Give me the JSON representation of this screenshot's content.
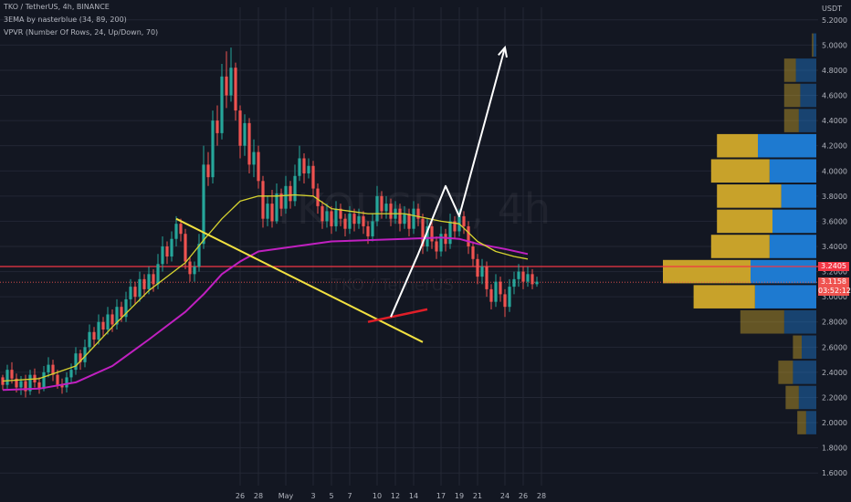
{
  "header": {
    "symbol": "TKO / TetherUS, 4h, BINANCE",
    "ema_indicator": "3EMA by nasterblue (34, 89, 200)",
    "vpvr_indicator": "VPVR (Number Of Rows, 24, Up/Down, 70)",
    "axis_unit": "USDT"
  },
  "price_tags": {
    "level": "3.2405",
    "last": "3.1158",
    "countdown": "03:52:12"
  },
  "watermark": {
    "symbol": "TKOUSDT, 4h",
    "name": "TKO / TetherUS"
  },
  "colors": {
    "background": "#131722",
    "up_candle": "#26a69a",
    "down_candle": "#ef5350",
    "ema_short": "#d6d330",
    "ema_mid": "#c020c0",
    "level_line": "#f23645",
    "trend_line": "#f2e140",
    "support_line": "#e01e28",
    "projection": "#ffffff",
    "vp_up": "#1e7ad0",
    "vp_down": "#c8a22a"
  },
  "chart_data": {
    "type": "candlestick",
    "y_axis": {
      "min": 1.5,
      "max": 5.3,
      "ticks": [
        1.6,
        1.8,
        2.0,
        2.2,
        2.4,
        2.6,
        2.8,
        3.0,
        3.2,
        3.4,
        3.6,
        3.8,
        4.0,
        4.2,
        4.4,
        4.6,
        4.8,
        5.0,
        5.2
      ],
      "tick_labels": [
        "1.6000",
        "1.8000",
        "2.0000",
        "2.2000",
        "2.4000",
        "2.6000",
        "2.8000",
        "3.0000",
        "3.2000",
        "3.4000",
        "3.6000",
        "3.8000",
        "4.0000",
        "4.2000",
        "4.4000",
        "4.6000",
        "4.8000",
        "5.0000",
        "5.2000"
      ]
    },
    "x_axis": {
      "ticks": [
        26,
        28,
        31,
        34,
        36,
        38,
        41,
        43,
        45,
        48,
        50,
        52,
        55,
        57,
        59
      ],
      "tick_labels": [
        "26",
        "28",
        "May",
        "3",
        "5",
        "7",
        "10",
        "12",
        "14",
        "17",
        "19",
        "21",
        "24",
        "26",
        "28"
      ]
    },
    "candles": [
      [
        2.36,
        2.3,
        2.38,
        2.26
      ],
      [
        2.3,
        2.42,
        2.46,
        2.27
      ],
      [
        2.42,
        2.35,
        2.48,
        2.31
      ],
      [
        2.35,
        2.28,
        2.39,
        2.24
      ],
      [
        2.28,
        2.33,
        2.37,
        2.22
      ],
      [
        2.33,
        2.25,
        2.38,
        2.2
      ],
      [
        2.25,
        2.38,
        2.42,
        2.22
      ],
      [
        2.38,
        2.32,
        2.43,
        2.28
      ],
      [
        2.32,
        2.27,
        2.36,
        2.23
      ],
      [
        2.27,
        2.4,
        2.45,
        2.25
      ],
      [
        2.4,
        2.46,
        2.52,
        2.36
      ],
      [
        2.46,
        2.38,
        2.5,
        2.33
      ],
      [
        2.38,
        2.3,
        2.42,
        2.27
      ],
      [
        2.3,
        2.28,
        2.35,
        2.23
      ],
      [
        2.28,
        2.36,
        2.4,
        2.24
      ],
      [
        2.36,
        2.42,
        2.47,
        2.32
      ],
      [
        2.42,
        2.55,
        2.6,
        2.38
      ],
      [
        2.55,
        2.48,
        2.58,
        2.42
      ],
      [
        2.48,
        2.6,
        2.66,
        2.44
      ],
      [
        2.6,
        2.72,
        2.78,
        2.56
      ],
      [
        2.72,
        2.66,
        2.76,
        2.6
      ],
      [
        2.66,
        2.8,
        2.86,
        2.62
      ],
      [
        2.8,
        2.74,
        2.84,
        2.68
      ],
      [
        2.74,
        2.86,
        2.92,
        2.7
      ],
      [
        2.86,
        2.78,
        2.9,
        2.72
      ],
      [
        2.78,
        2.92,
        2.98,
        2.74
      ],
      [
        2.92,
        2.84,
        2.96,
        2.8
      ],
      [
        2.84,
        2.98,
        3.04,
        2.8
      ],
      [
        2.98,
        3.08,
        3.14,
        2.92
      ],
      [
        3.08,
        3.0,
        3.12,
        2.94
      ],
      [
        3.0,
        3.14,
        3.2,
        2.96
      ],
      [
        3.14,
        3.06,
        3.18,
        3.0
      ],
      [
        3.06,
        3.18,
        3.24,
        3.02
      ],
      [
        3.18,
        3.1,
        3.22,
        3.04
      ],
      [
        3.1,
        3.26,
        3.34,
        3.06
      ],
      [
        3.26,
        3.4,
        3.48,
        3.2
      ],
      [
        3.4,
        3.32,
        3.44,
        3.26
      ],
      [
        3.32,
        3.46,
        3.52,
        3.28
      ],
      [
        3.46,
        3.58,
        3.64,
        3.4
      ],
      [
        3.58,
        3.5,
        3.62,
        3.44
      ],
      [
        3.5,
        3.28,
        3.54,
        3.22
      ],
      [
        3.28,
        3.18,
        3.32,
        3.12
      ],
      [
        3.18,
        3.24,
        3.28,
        3.12
      ],
      [
        3.24,
        3.42,
        3.5,
        3.2
      ],
      [
        3.42,
        4.05,
        4.2,
        3.38
      ],
      [
        4.05,
        3.95,
        4.15,
        3.88
      ],
      [
        3.95,
        4.4,
        4.48,
        3.9
      ],
      [
        4.4,
        4.3,
        4.52,
        4.2
      ],
      [
        4.3,
        4.75,
        4.85,
        4.25
      ],
      [
        4.75,
        4.6,
        4.95,
        4.5
      ],
      [
        4.6,
        4.82,
        4.98,
        4.55
      ],
      [
        4.82,
        4.48,
        4.86,
        4.4
      ],
      [
        4.48,
        4.2,
        4.52,
        4.1
      ],
      [
        4.2,
        4.38,
        4.45,
        4.12
      ],
      [
        4.38,
        4.05,
        4.42,
        3.98
      ],
      [
        4.05,
        4.15,
        4.25,
        3.95
      ],
      [
        4.15,
        3.92,
        4.2,
        3.86
      ],
      [
        3.92,
        3.62,
        3.96,
        3.55
      ],
      [
        3.62,
        3.74,
        3.8,
        3.56
      ],
      [
        3.74,
        3.6,
        3.85,
        3.55
      ],
      [
        3.6,
        3.82,
        3.9,
        3.58
      ],
      [
        3.82,
        3.7,
        3.86,
        3.64
      ],
      [
        3.7,
        3.88,
        3.96,
        3.66
      ],
      [
        3.88,
        3.76,
        3.92,
        3.7
      ],
      [
        3.76,
        3.96,
        4.05,
        3.72
      ],
      [
        3.96,
        4.1,
        4.2,
        3.92
      ],
      [
        4.1,
        3.98,
        4.14,
        3.9
      ],
      [
        3.98,
        4.04,
        4.1,
        3.94
      ],
      [
        4.04,
        3.86,
        4.08,
        3.8
      ],
      [
        3.86,
        3.72,
        3.9,
        3.66
      ],
      [
        3.72,
        3.6,
        3.76,
        3.54
      ],
      [
        3.6,
        3.68,
        3.74,
        3.55
      ],
      [
        3.68,
        3.56,
        3.72,
        3.5
      ],
      [
        3.56,
        3.7,
        3.76,
        3.52
      ],
      [
        3.7,
        3.62,
        3.74,
        3.56
      ],
      [
        3.62,
        3.54,
        3.66,
        3.48
      ],
      [
        3.54,
        3.66,
        3.72,
        3.5
      ],
      [
        3.66,
        3.58,
        3.7,
        3.52
      ],
      [
        3.58,
        3.64,
        3.7,
        3.54
      ],
      [
        3.64,
        3.56,
        3.68,
        3.5
      ],
      [
        3.56,
        3.48,
        3.6,
        3.42
      ],
      [
        3.48,
        3.6,
        3.66,
        3.44
      ],
      [
        3.6,
        3.8,
        3.88,
        3.56
      ],
      [
        3.8,
        3.68,
        3.84,
        3.62
      ],
      [
        3.68,
        3.74,
        3.8,
        3.62
      ],
      [
        3.74,
        3.62,
        3.78,
        3.56
      ],
      [
        3.62,
        3.7,
        3.76,
        3.58
      ],
      [
        3.7,
        3.58,
        3.74,
        3.52
      ],
      [
        3.58,
        3.66,
        3.72,
        3.54
      ],
      [
        3.66,
        3.54,
        3.7,
        3.48
      ],
      [
        3.54,
        3.7,
        3.76,
        3.5
      ],
      [
        3.7,
        3.62,
        3.74,
        3.56
      ],
      [
        3.62,
        3.4,
        3.66,
        3.34
      ],
      [
        3.4,
        3.56,
        3.62,
        3.36
      ],
      [
        3.56,
        3.44,
        3.6,
        3.38
      ],
      [
        3.44,
        3.36,
        3.48,
        3.3
      ],
      [
        3.36,
        3.5,
        3.56,
        3.32
      ],
      [
        3.5,
        3.42,
        3.54,
        3.36
      ],
      [
        3.42,
        3.6,
        3.66,
        3.38
      ],
      [
        3.6,
        3.52,
        3.64,
        3.46
      ],
      [
        3.52,
        3.64,
        3.7,
        3.48
      ],
      [
        3.64,
        3.56,
        3.68,
        3.5
      ],
      [
        3.56,
        3.4,
        3.6,
        3.34
      ],
      [
        3.4,
        3.3,
        3.44,
        3.24
      ],
      [
        3.3,
        3.16,
        3.34,
        3.1
      ],
      [
        3.16,
        3.24,
        3.3,
        3.1
      ],
      [
        3.24,
        3.06,
        3.28,
        3.0
      ],
      [
        3.06,
        2.96,
        3.1,
        2.9
      ],
      [
        2.96,
        3.12,
        3.18,
        2.92
      ],
      [
        3.12,
        3.02,
        3.16,
        2.96
      ],
      [
        3.02,
        2.92,
        3.06,
        2.84
      ],
      [
        2.92,
        3.08,
        3.14,
        2.88
      ],
      [
        3.08,
        3.14,
        3.2,
        3.02
      ],
      [
        3.14,
        3.2,
        3.26,
        3.08
      ],
      [
        3.2,
        3.12,
        3.24,
        3.06
      ],
      [
        3.12,
        3.18,
        3.24,
        3.08
      ],
      [
        3.18,
        3.1,
        3.22,
        3.06
      ],
      [
        3.1,
        3.12,
        3.16,
        3.08
      ]
    ],
    "ema34": [
      [
        0,
        2.33
      ],
      [
        8,
        2.35
      ],
      [
        16,
        2.45
      ],
      [
        24,
        2.76
      ],
      [
        32,
        3.05
      ],
      [
        40,
        3.27
      ],
      [
        44,
        3.45
      ],
      [
        48,
        3.62
      ],
      [
        52,
        3.76
      ],
      [
        56,
        3.8
      ],
      [
        60,
        3.8
      ],
      [
        64,
        3.81
      ],
      [
        68,
        3.8
      ],
      [
        72,
        3.7
      ],
      [
        80,
        3.66
      ],
      [
        88,
        3.66
      ],
      [
        96,
        3.6
      ],
      [
        100,
        3.58
      ],
      [
        104,
        3.44
      ],
      [
        108,
        3.36
      ],
      [
        112,
        3.32
      ],
      [
        115,
        3.3
      ]
    ],
    "ema89": [
      [
        0,
        2.26
      ],
      [
        8,
        2.27
      ],
      [
        16,
        2.32
      ],
      [
        24,
        2.45
      ],
      [
        32,
        2.66
      ],
      [
        40,
        2.88
      ],
      [
        44,
        3.02
      ],
      [
        48,
        3.18
      ],
      [
        52,
        3.28
      ],
      [
        56,
        3.36
      ],
      [
        64,
        3.4
      ],
      [
        72,
        3.44
      ],
      [
        80,
        3.45
      ],
      [
        88,
        3.46
      ],
      [
        96,
        3.47
      ],
      [
        100,
        3.46
      ],
      [
        104,
        3.42
      ],
      [
        110,
        3.38
      ],
      [
        115,
        3.34
      ]
    ],
    "vpvr": {
      "row_prices": [
        2.0,
        2.2,
        2.4,
        2.6,
        2.8,
        3.0,
        3.2,
        3.4,
        3.6,
        3.8,
        4.0,
        4.2,
        4.4,
        4.6,
        4.8,
        5.0
      ],
      "up_volumes": [
        7,
        12,
        16,
        10,
        22,
        42,
        45,
        32,
        30,
        24,
        32,
        40,
        12,
        11,
        14,
        2
      ],
      "down_volumes": [
        6,
        9,
        10,
        6,
        30,
        42,
        60,
        40,
        38,
        44,
        40,
        28,
        10,
        11,
        8,
        1
      ],
      "row_opacity": [
        0.45,
        0.45,
        0.45,
        0.45,
        0.45,
        1,
        1,
        1,
        1,
        1,
        1,
        1,
        0.45,
        0.45,
        0.45,
        0.45
      ]
    },
    "level_price": 3.2405,
    "last_price": 3.1158,
    "trend_line": [
      [
        38,
        3.62
      ],
      [
        92,
        2.64
      ]
    ],
    "support_line": [
      [
        80,
        2.8
      ],
      [
        93,
        2.9
      ]
    ],
    "projection": [
      [
        85,
        2.84
      ],
      [
        91,
        3.34
      ],
      [
        97,
        3.88
      ],
      [
        100,
        3.64
      ],
      [
        110,
        4.98
      ]
    ]
  }
}
